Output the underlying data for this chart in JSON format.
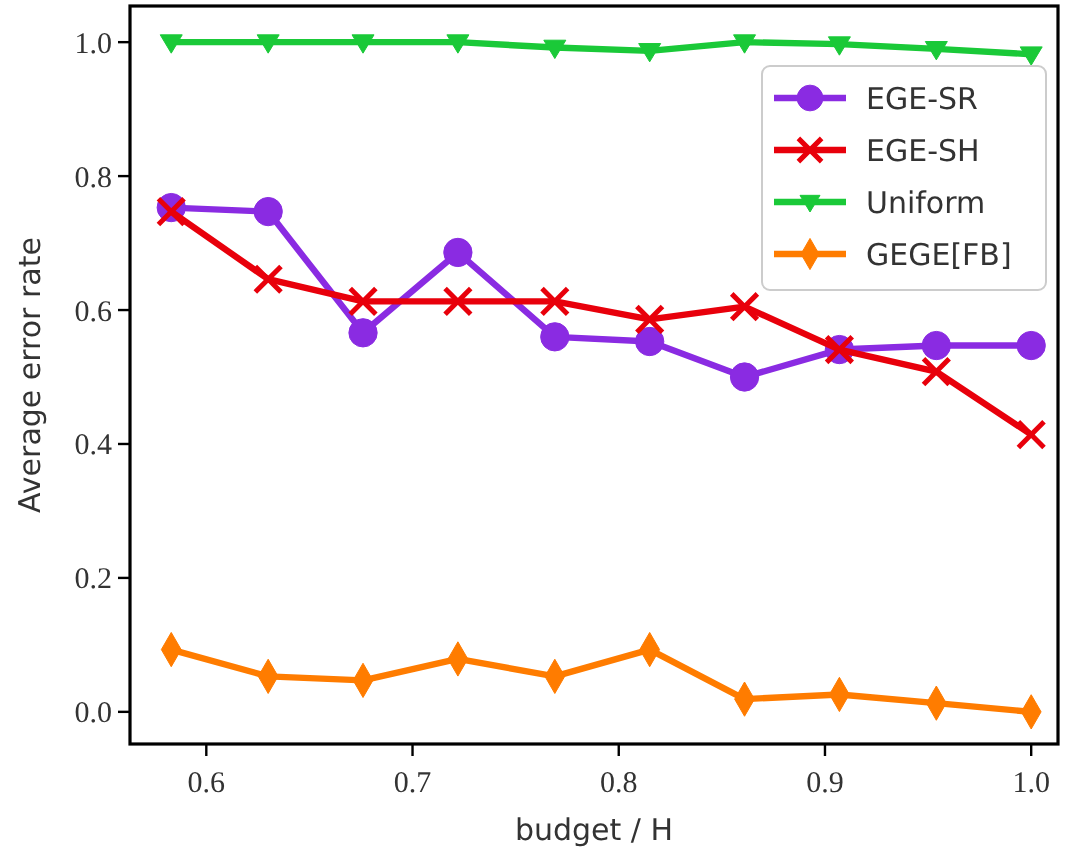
{
  "chart_data": {
    "type": "line",
    "xlabel": "budget / H",
    "ylabel": "Average error rate",
    "x": [
      0.583,
      0.63,
      0.676,
      0.722,
      0.769,
      0.815,
      0.861,
      0.907,
      0.954,
      1.0
    ],
    "xlim": [
      0.563,
      1.013
    ],
    "xticks": [
      {
        "value": 0.6,
        "label": "0.6"
      },
      {
        "value": 0.7,
        "label": "0.7"
      },
      {
        "value": 0.8,
        "label": "0.8"
      },
      {
        "value": 0.9,
        "label": "0.9"
      },
      {
        "value": 1.0,
        "label": "1.0"
      }
    ],
    "ylim": [
      -0.048,
      1.054
    ],
    "yticks": [
      {
        "value": 0,
        "label": "0.0"
      },
      {
        "value": 0.2,
        "label": "0.2"
      },
      {
        "value": 0.4,
        "label": "0.4"
      },
      {
        "value": 0.6,
        "label": "0.6"
      },
      {
        "value": 0.8,
        "label": "0.8"
      },
      {
        "value": 1.0,
        "label": "1.0"
      }
    ],
    "series": [
      {
        "name": "EGE-SR",
        "color": "#8a2be2",
        "marker": "circle",
        "values": [
          0.753,
          0.747,
          0.566,
          0.686,
          0.56,
          0.553,
          0.5,
          0.541,
          0.547,
          0.547
        ]
      },
      {
        "name": "EGE-SH",
        "color": "#e8000b",
        "marker": "cross",
        "values": [
          0.747,
          0.646,
          0.613,
          0.613,
          0.613,
          0.586,
          0.605,
          0.541,
          0.508,
          0.414
        ]
      },
      {
        "name": "Uniform",
        "color": "#1ac938",
        "marker": "triangle",
        "values": [
          1.0,
          1.0,
          1.0,
          1.0,
          0.992,
          0.987,
          1.0,
          0.997,
          0.99,
          0.982
        ]
      },
      {
        "name": "GEGE[FB]",
        "color": "#ff7c00",
        "marker": "diamond",
        "values": [
          0.093,
          0.053,
          0.047,
          0.079,
          0.053,
          0.093,
          0.019,
          0.026,
          0.013,
          0.0
        ]
      }
    ],
    "legend": "top right",
    "grid": false
  }
}
